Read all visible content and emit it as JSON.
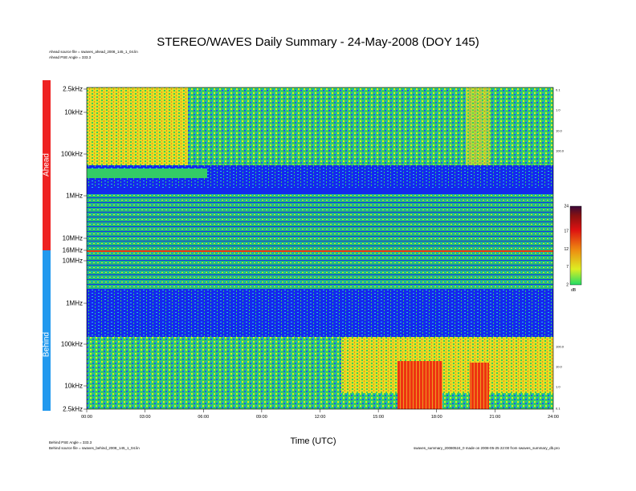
{
  "header": {
    "title": "STEREO/WAVES Daily Summary - 24-May-2008 (DOY 145)",
    "ahead_source": "Ahead source file = swaves_ahead_2008_145_1_04.lin",
    "ahead_pse": "Ahead PSE Angle = 333.3",
    "behind_pse": "Behind PSE Angle = 333.3",
    "behind_source": "Behind source file = swaves_behind_2008_145_1_04.lin",
    "footer_right": "swaves_summary_20080524_0 made on 2008-05-25 22:00 from swaves_summary_db.pro"
  },
  "colors": {
    "ahead_bar": "#ee2222",
    "behind_bar": "#2299ee",
    "spectrum_low": "#0a1aee",
    "spectrum_mid": "#22cc66",
    "spectrum_high": "#ee3311"
  },
  "chart_data": {
    "type": "heatmap",
    "title": "STEREO/WAVES Daily Summary - 24-May-2008 (DOY 145)",
    "xlabel": "Time (UTC)",
    "x_ticks": [
      "00:00",
      "03:00",
      "06:00",
      "09:00",
      "12:00",
      "15:00",
      "18:00",
      "21:00",
      "24:00"
    ],
    "xlim": [
      "00:00",
      "24:00"
    ],
    "panels": [
      {
        "name": "Ahead",
        "y_ticks": [
          "2.5kHz",
          "10kHz",
          "100kHz",
          "1MHz",
          "10MHz",
          "16MHz"
        ],
        "right_ticks": [
          "0.1",
          "1.0",
          "10.0",
          "100.0"
        ]
      },
      {
        "name": "Behind",
        "y_ticks": [
          "10MHz",
          "1MHz",
          "100kHz",
          "10kHz",
          "2.5kHz"
        ],
        "right_ticks": [
          "100.0",
          "10.0",
          "1.0",
          "0.1"
        ]
      }
    ],
    "colorbar": {
      "ticks": [
        "24",
        "17",
        "12",
        "7",
        "2"
      ],
      "unit": "dB",
      "range": [
        2,
        24
      ]
    }
  }
}
